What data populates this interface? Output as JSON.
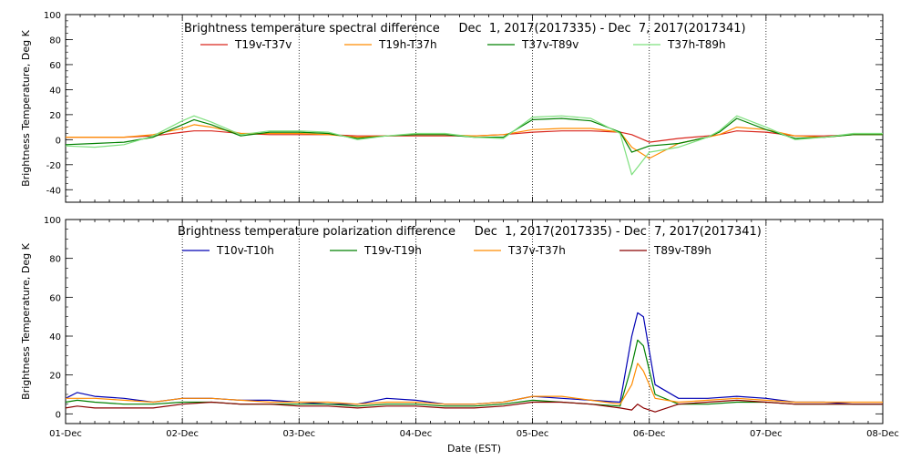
{
  "x_labels": [
    "01-Dec",
    "02-Dec",
    "03-Dec",
    "04-Dec",
    "05-Dec",
    "06-Dec",
    "07-Dec",
    "08-Dec"
  ],
  "x_label_text": "Date (EST)",
  "chart_data": [
    {
      "type": "line",
      "title": "Brightness temperature spectral difference     Dec  1, 2017(2017335) - Dec  7, 2017(2017341)",
      "ylabel": "Brightness Temperature, Deg K",
      "xlabel": "",
      "ylim": [
        -50,
        100
      ],
      "yticks": [
        -40,
        -20,
        0,
        20,
        40,
        60,
        80,
        100
      ],
      "xlim": [
        0,
        7
      ],
      "grid": true,
      "legend_position": "top",
      "series": [
        {
          "name": "T19v-T37v",
          "color": "#d9261c",
          "x": [
            0,
            0.25,
            0.5,
            0.75,
            1.0,
            1.1,
            1.25,
            1.5,
            1.75,
            2.0,
            2.25,
            2.5,
            2.75,
            3.0,
            3.25,
            3.5,
            3.75,
            4.0,
            4.25,
            4.5,
            4.75,
            4.85,
            5.0,
            5.25,
            5.5,
            5.6,
            5.75,
            6.0,
            6.25,
            6.5,
            6.75,
            7.0
          ],
          "y": [
            2,
            2,
            2,
            3,
            6,
            7,
            7,
            5,
            4,
            4,
            4,
            3,
            3,
            3,
            3,
            3,
            4,
            6,
            7,
            7,
            6,
            4,
            -2,
            1,
            3,
            4,
            7,
            6,
            3,
            3,
            4,
            4
          ]
        },
        {
          "name": "T19h-T37h",
          "color": "#ff8c00",
          "x": [
            0,
            0.25,
            0.5,
            0.75,
            1.0,
            1.1,
            1.25,
            1.5,
            1.75,
            2.0,
            2.25,
            2.5,
            2.75,
            3.0,
            3.25,
            3.5,
            3.75,
            4.0,
            4.25,
            4.5,
            4.75,
            4.85,
            5.0,
            5.25,
            5.5,
            5.6,
            5.75,
            6.0,
            6.25,
            6.5,
            6.75,
            7.0
          ],
          "y": [
            2,
            2,
            2,
            4,
            9,
            12,
            10,
            5,
            5,
            5,
            4,
            2,
            3,
            4,
            4,
            3,
            4,
            8,
            9,
            9,
            6,
            -6,
            -15,
            -3,
            2,
            4,
            10,
            8,
            3,
            2,
            4,
            4
          ]
        },
        {
          "name": "T37v-T89v",
          "color": "#008000",
          "x": [
            0,
            0.25,
            0.5,
            0.75,
            1.0,
            1.1,
            1.25,
            1.5,
            1.75,
            2.0,
            2.25,
            2.5,
            2.75,
            3.0,
            3.25,
            3.5,
            3.75,
            4.0,
            4.25,
            4.5,
            4.75,
            4.85,
            5.0,
            5.25,
            5.5,
            5.6,
            5.75,
            6.0,
            6.25,
            6.5,
            6.75,
            7.0
          ],
          "y": [
            -4,
            -3,
            -2,
            2,
            12,
            16,
            12,
            3,
            6,
            6,
            5,
            1,
            3,
            4,
            4,
            2,
            2,
            16,
            17,
            15,
            6,
            -10,
            -5,
            -3,
            2,
            6,
            17,
            8,
            1,
            2,
            4,
            4
          ]
        },
        {
          "name": "T37h-T89h",
          "color": "#7ee07e",
          "x": [
            0,
            0.25,
            0.5,
            0.75,
            1.0,
            1.1,
            1.25,
            1.5,
            1.75,
            2.0,
            2.25,
            2.5,
            2.75,
            3.0,
            3.25,
            3.5,
            3.75,
            4.0,
            4.25,
            4.5,
            4.75,
            4.85,
            5.0,
            5.25,
            5.5,
            5.6,
            5.75,
            6.0,
            6.25,
            6.5,
            6.75,
            7.0
          ],
          "y": [
            -5,
            -6,
            -4,
            3,
            15,
            19,
            14,
            4,
            7,
            7,
            6,
            0,
            3,
            5,
            5,
            2,
            1,
            18,
            19,
            17,
            5,
            -28,
            -10,
            -6,
            2,
            7,
            19,
            10,
            0,
            2,
            5,
            5
          ]
        }
      ]
    },
    {
      "type": "line",
      "title": "Brightness temperature polarization difference     Dec  1, 2017(2017335) - Dec  7, 2017(2017341)",
      "ylabel": "Brightness Temperature, Deg K",
      "xlabel": "Date (EST)",
      "ylim": [
        -5,
        100
      ],
      "yticks": [
        0,
        20,
        40,
        60,
        80,
        100
      ],
      "xlim": [
        0,
        7
      ],
      "grid": true,
      "legend_position": "top",
      "series": [
        {
          "name": "T10v-T10h",
          "color": "#0000b4",
          "x": [
            0,
            0.1,
            0.25,
            0.5,
            0.75,
            1.0,
            1.25,
            1.5,
            1.75,
            2.0,
            2.25,
            2.5,
            2.75,
            3.0,
            3.25,
            3.5,
            3.75,
            4.0,
            4.25,
            4.5,
            4.75,
            4.85,
            4.9,
            4.95,
            5.05,
            5.25,
            5.5,
            5.75,
            6.0,
            6.25,
            6.5,
            6.75,
            7.0
          ],
          "y": [
            8,
            11,
            9,
            8,
            6,
            8,
            8,
            7,
            7,
            6,
            5,
            5,
            8,
            7,
            5,
            5,
            6,
            9,
            8,
            7,
            6,
            40,
            52,
            50,
            15,
            8,
            8,
            9,
            8,
            6,
            6,
            5,
            5
          ]
        },
        {
          "name": "T19v-T19h",
          "color": "#008000",
          "x": [
            0,
            0.1,
            0.25,
            0.5,
            0.75,
            1.0,
            1.25,
            1.5,
            1.75,
            2.0,
            2.25,
            2.5,
            2.75,
            3.0,
            3.25,
            3.5,
            3.75,
            4.0,
            4.25,
            4.5,
            4.75,
            4.85,
            4.9,
            4.95,
            5.05,
            5.25,
            5.5,
            5.75,
            6.0,
            6.25,
            6.5,
            6.75,
            7.0
          ],
          "y": [
            6,
            7,
            6,
            5,
            5,
            6,
            6,
            5,
            5,
            5,
            5,
            4,
            5,
            5,
            4,
            4,
            5,
            7,
            6,
            5,
            4,
            25,
            38,
            35,
            10,
            5,
            5,
            6,
            6,
            5,
            5,
            5,
            5
          ]
        },
        {
          "name": "T37v-T37h",
          "color": "#ff8c00",
          "x": [
            0,
            0.1,
            0.25,
            0.5,
            0.75,
            1.0,
            1.25,
            1.5,
            1.75,
            2.0,
            2.25,
            2.5,
            2.75,
            3.0,
            3.25,
            3.5,
            3.75,
            4.0,
            4.25,
            4.5,
            4.75,
            4.85,
            4.9,
            4.95,
            5.05,
            5.25,
            5.5,
            5.75,
            6.0,
            6.25,
            6.5,
            6.75,
            7.0
          ],
          "y": [
            8,
            8,
            8,
            7,
            6,
            8,
            8,
            7,
            6,
            6,
            6,
            5,
            6,
            6,
            5,
            5,
            6,
            9,
            9,
            7,
            5,
            15,
            26,
            22,
            8,
            6,
            7,
            8,
            7,
            6,
            6,
            6,
            6
          ]
        },
        {
          "name": "T89v-T89h",
          "color": "#8b0000",
          "x": [
            0,
            0.1,
            0.25,
            0.5,
            0.75,
            1.0,
            1.25,
            1.5,
            1.75,
            2.0,
            2.25,
            2.5,
            2.75,
            3.0,
            3.25,
            3.5,
            3.75,
            4.0,
            4.25,
            4.5,
            4.75,
            4.85,
            4.9,
            4.95,
            5.05,
            5.25,
            5.5,
            5.75,
            6.0,
            6.25,
            6.5,
            6.75,
            7.0
          ],
          "y": [
            3,
            4,
            3,
            3,
            3,
            5,
            6,
            5,
            5,
            4,
            4,
            3,
            4,
            4,
            3,
            3,
            4,
            6,
            6,
            5,
            3,
            2,
            5,
            3,
            1,
            5,
            6,
            7,
            6,
            5,
            5,
            5,
            5
          ]
        }
      ]
    }
  ]
}
